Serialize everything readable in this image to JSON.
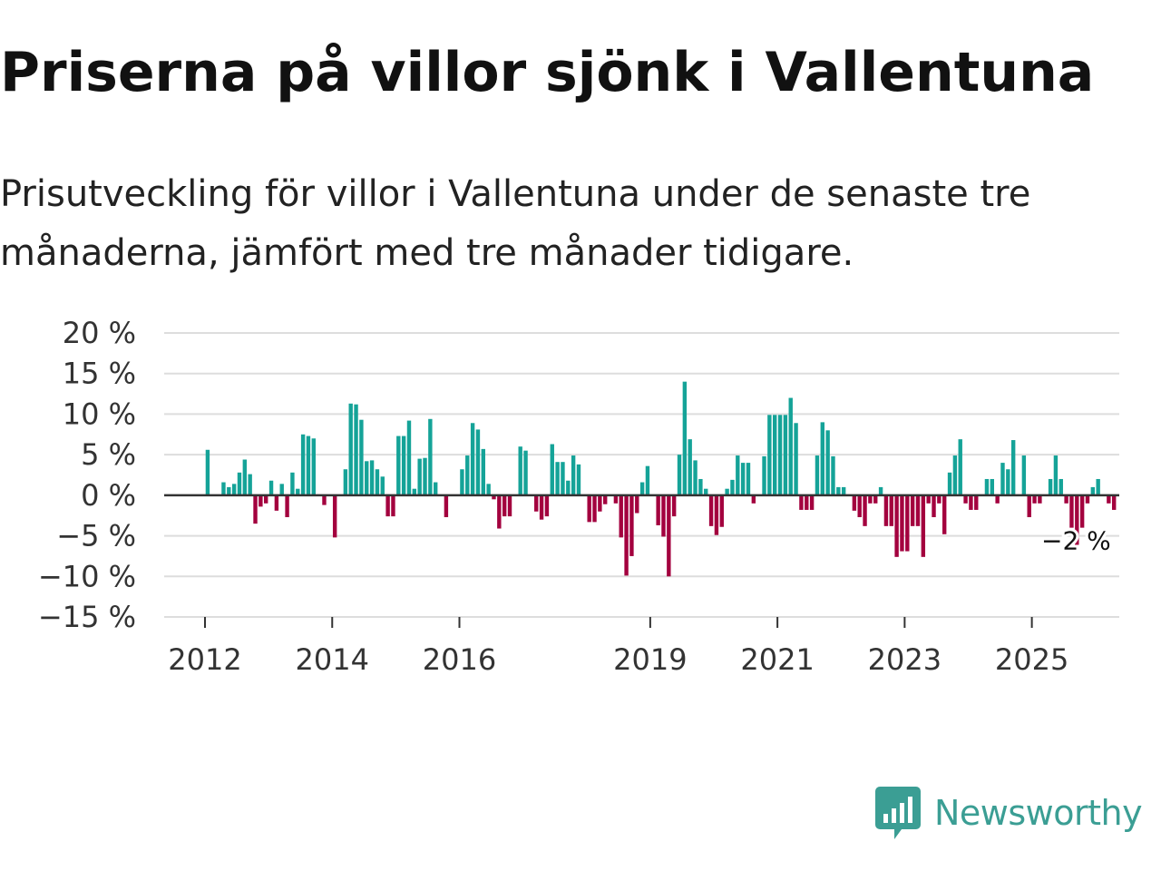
{
  "title": "Priserna på villor sjönk i Vallentuna",
  "subtitle": "Prisutveckling för villor i Vallentuna under de senaste tre månaderna, jämfört med tre månader tidigare.",
  "brand": {
    "name": "Newsworthy",
    "color": "#3b9e94"
  },
  "colors": {
    "positive": "#15a398",
    "negative": "#a3003e",
    "grid": "#dddddd",
    "zero": "#333333",
    "text": "#333333"
  },
  "chart_data": {
    "type": "bar",
    "title": "Priserna på villor sjönk i Vallentuna",
    "xlabel": "",
    "ylabel": "",
    "ylim": [
      -15,
      20
    ],
    "y_ticks": [
      20,
      15,
      10,
      5,
      0,
      -5,
      -10,
      -15
    ],
    "y_tick_labels": [
      "20 %",
      "15 %",
      "10 %",
      "5 %",
      "0 %",
      "−5 %",
      "−10 %",
      "−15 %"
    ],
    "x_ticks": [
      2012,
      2014,
      2016,
      2019,
      2021,
      2023,
      2025
    ],
    "x_tick_labels": [
      "2012",
      "2014",
      "2016",
      "2019",
      "2021",
      "2023",
      "2025"
    ],
    "start_year": 2011,
    "start_month": 6,
    "series": [
      {
        "name": "Prisutveckling",
        "values": [
          0,
          0,
          0,
          0,
          0,
          0,
          0,
          5.6,
          0,
          0,
          1.6,
          1.0,
          1.4,
          2.8,
          4.4,
          2.6,
          -3.5,
          -1.4,
          -1.0,
          1.8,
          -1.9,
          1.4,
          -2.7,
          2.8,
          0.8,
          7.5,
          7.3,
          7.0,
          0,
          -1.2,
          0,
          -5.2,
          0,
          3.2,
          11.3,
          11.2,
          9.3,
          4.2,
          4.3,
          3.2,
          2.3,
          -2.6,
          -2.6,
          7.3,
          7.3,
          9.2,
          0.8,
          4.5,
          4.6,
          9.4,
          1.6,
          0,
          -2.7,
          0,
          0,
          3.2,
          4.9,
          8.9,
          8.1,
          5.7,
          1.4,
          -0.5,
          -4.1,
          -2.6,
          -2.6,
          0,
          6.0,
          5.5,
          0,
          -2.0,
          -3.0,
          -2.6,
          6.3,
          4.1,
          4.1,
          1.8,
          4.9,
          3.8,
          0,
          -3.3,
          -3.3,
          -2.0,
          -1.1,
          0,
          -1.0,
          -5.2,
          -9.9,
          -7.5,
          -2.2,
          1.6,
          3.6,
          0,
          -3.7,
          -5.1,
          -10.0,
          -2.6,
          5.0,
          14.0,
          6.9,
          4.3,
          2.0,
          0.8,
          -3.8,
          -4.9,
          -3.9,
          0.8,
          1.9,
          4.9,
          4.0,
          4.0,
          -1.0,
          0,
          4.8,
          9.9,
          9.9,
          9.9,
          9.9,
          12.0,
          8.9,
          -1.8,
          -1.8,
          -1.8,
          4.9,
          9.0,
          8.0,
          4.8,
          1.0,
          1.0,
          0,
          -1.9,
          -2.7,
          -3.8,
          -1.0,
          -1.0,
          1.0,
          -3.8,
          -3.8,
          -7.6,
          -6.9,
          -6.9,
          -3.8,
          -3.8,
          -7.6,
          -1.0,
          -2.7,
          -1.0,
          -4.8,
          2.8,
          4.9,
          6.9,
          -1.0,
          -1.8,
          -1.8,
          0,
          2.0,
          2.0,
          -1.0,
          4.0,
          3.2,
          6.8,
          0,
          4.9,
          -2.7,
          -1.0,
          -1.0,
          0,
          2.0,
          4.9,
          2.0,
          -1.0,
          -4.0,
          -6.8,
          -4.0,
          -1.0,
          1.0,
          2.0,
          0,
          -1.0,
          -1.8
        ]
      }
    ],
    "annotation": {
      "label": "−2 %",
      "value": -2
    }
  }
}
